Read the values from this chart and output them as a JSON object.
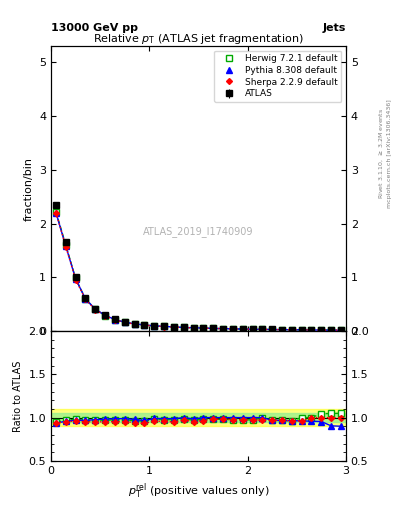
{
  "title": "Relative $p_{\\mathrm{T}}$ (ATLAS jet fragmentation)",
  "header_left": "13000 GeV pp",
  "header_right": "Jets",
  "ylabel_main": "fraction/bin",
  "ylabel_ratio": "Ratio to ATLAS",
  "xlabel": "$p_{\\mathrm{T}}^{\\mathrm{rel}}$ (positive values only)",
  "watermark": "ATLAS_2019_I1740909",
  "right_label_top": "Rivet 3.1.10, $\\geq$ 3.2M events",
  "right_label_bottom": "mcplots.cern.ch [arXiv:1306.3436]",
  "x_atlas": [
    0.05,
    0.15,
    0.25,
    0.35,
    0.45,
    0.55,
    0.65,
    0.75,
    0.85,
    0.95,
    1.05,
    1.15,
    1.25,
    1.35,
    1.45,
    1.55,
    1.65,
    1.75,
    1.85,
    1.95,
    2.05,
    2.15,
    2.25,
    2.35,
    2.45,
    2.55,
    2.65,
    2.75,
    2.85,
    2.95
  ],
  "y_atlas": [
    2.35,
    1.65,
    1.0,
    0.62,
    0.42,
    0.3,
    0.22,
    0.17,
    0.14,
    0.12,
    0.1,
    0.09,
    0.08,
    0.07,
    0.065,
    0.058,
    0.052,
    0.048,
    0.044,
    0.04,
    0.037,
    0.034,
    0.032,
    0.03,
    0.028,
    0.026,
    0.024,
    0.022,
    0.021,
    0.02
  ],
  "y_atlas_err": [
    0.05,
    0.04,
    0.03,
    0.02,
    0.015,
    0.012,
    0.01,
    0.008,
    0.007,
    0.006,
    0.005,
    0.005,
    0.004,
    0.004,
    0.003,
    0.003,
    0.003,
    0.003,
    0.002,
    0.002,
    0.002,
    0.002,
    0.002,
    0.002,
    0.002,
    0.002,
    0.002,
    0.002,
    0.001,
    0.001
  ],
  "x_mc": [
    0.05,
    0.15,
    0.25,
    0.35,
    0.45,
    0.55,
    0.65,
    0.75,
    0.85,
    0.95,
    1.05,
    1.15,
    1.25,
    1.35,
    1.45,
    1.55,
    1.65,
    1.75,
    1.85,
    1.95,
    2.05,
    2.15,
    2.25,
    2.35,
    2.45,
    2.55,
    2.65,
    2.75,
    2.85,
    2.95
  ],
  "y_herwig": [
    2.22,
    1.6,
    0.98,
    0.6,
    0.41,
    0.29,
    0.215,
    0.165,
    0.135,
    0.115,
    0.098,
    0.088,
    0.078,
    0.069,
    0.063,
    0.057,
    0.051,
    0.047,
    0.043,
    0.039,
    0.036,
    0.034,
    0.031,
    0.029,
    0.027,
    0.026,
    0.024,
    0.023,
    0.022,
    0.021
  ],
  "y_pythia": [
    2.2,
    1.58,
    0.97,
    0.6,
    0.41,
    0.295,
    0.217,
    0.168,
    0.137,
    0.116,
    0.099,
    0.089,
    0.079,
    0.07,
    0.064,
    0.058,
    0.052,
    0.048,
    0.044,
    0.04,
    0.037,
    0.034,
    0.031,
    0.029,
    0.027,
    0.025,
    0.023,
    0.021,
    0.019,
    0.018
  ],
  "y_sherpa": [
    2.2,
    1.57,
    0.96,
    0.59,
    0.4,
    0.285,
    0.21,
    0.162,
    0.132,
    0.112,
    0.096,
    0.086,
    0.076,
    0.068,
    0.062,
    0.056,
    0.051,
    0.047,
    0.043,
    0.039,
    0.036,
    0.033,
    0.031,
    0.029,
    0.027,
    0.025,
    0.024,
    0.022,
    0.021,
    0.02
  ],
  "ratio_herwig": [
    0.945,
    0.97,
    0.98,
    0.97,
    0.976,
    0.967,
    0.977,
    0.971,
    0.964,
    0.958,
    0.98,
    0.978,
    0.975,
    0.986,
    0.969,
    0.983,
    0.981,
    0.979,
    0.977,
    0.975,
    0.973,
    1.0,
    0.969,
    0.967,
    0.964,
    1.0,
    1.0,
    1.045,
    1.048,
    1.05
  ],
  "ratio_pythia": [
    0.936,
    0.958,
    0.97,
    0.968,
    0.976,
    0.983,
    0.986,
    0.988,
    0.979,
    0.967,
    0.99,
    0.989,
    0.988,
    1.0,
    0.985,
    1.0,
    1.0,
    1.0,
    1.0,
    1.0,
    1.0,
    1.0,
    0.969,
    0.967,
    0.964,
    0.962,
    0.958,
    0.955,
    0.905,
    0.9
  ],
  "ratio_sherpa": [
    0.936,
    0.952,
    0.96,
    0.952,
    0.952,
    0.95,
    0.955,
    0.953,
    0.943,
    0.933,
    0.96,
    0.956,
    0.95,
    0.971,
    0.954,
    0.966,
    0.981,
    0.979,
    0.977,
    0.975,
    0.973,
    0.971,
    0.969,
    0.967,
    0.964,
    0.962,
    1.0,
    1.0,
    1.0,
    1.0
  ],
  "atlas_color": "black",
  "herwig_color": "#00aa00",
  "pythia_color": "blue",
  "sherpa_color": "red",
  "ylim_main": [
    0,
    5.3
  ],
  "ylim_ratio": [
    0.5,
    2.0
  ],
  "xlim": [
    0,
    3.0
  ],
  "band_yellow": [
    0.9,
    1.1
  ],
  "band_green": [
    0.95,
    1.05
  ]
}
